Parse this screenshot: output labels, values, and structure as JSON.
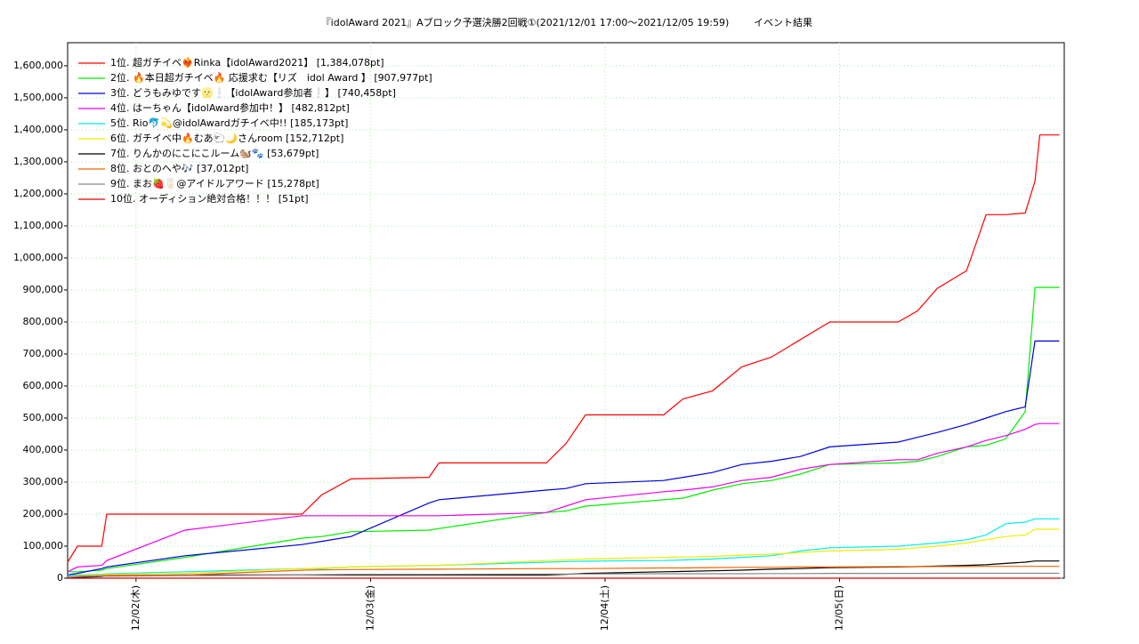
{
  "chart_data": {
    "type": "line",
    "title": "『idolAward 2021』Aブロック予選決勝2回戦①(2021/12/01 17:00～2021/12/05 19:59)",
    "subtitle": "イベント結果",
    "x": [
      0,
      1,
      3.5,
      4,
      12,
      24,
      26,
      29,
      37,
      38,
      49,
      51,
      53,
      61,
      63,
      66,
      69,
      72,
      75,
      78,
      85,
      87,
      89,
      92,
      94,
      96,
      98,
      99,
      99.5,
      101.5
    ],
    "xlim": [
      0,
      102
    ],
    "xticks": [
      {
        "value": 7,
        "label": "12/02(木)"
      },
      {
        "value": 31,
        "label": "12/03(金)"
      },
      {
        "value": 55,
        "label": "12/04(土)"
      },
      {
        "value": 79,
        "label": "12/05(日)"
      }
    ],
    "ylim": [
      0,
      1672000
    ],
    "yticks": [
      0,
      {
        "value": 100000,
        "label": "100,000"
      },
      {
        "value": 200000,
        "label": "200,000"
      },
      {
        "value": 300000,
        "label": "300,000"
      },
      {
        "value": 400000,
        "label": "400,000"
      },
      {
        "value": 500000,
        "label": "500,000"
      },
      {
        "value": 600000,
        "label": "600,000"
      },
      {
        "value": 700000,
        "label": "700,000"
      },
      {
        "value": 800000,
        "label": "800,000"
      },
      {
        "value": 900000,
        "label": "900,000"
      },
      {
        "value": 1000000,
        "label": "1,000,000"
      },
      {
        "value": 1100000,
        "label": "1,100,000"
      },
      {
        "value": 1200000,
        "label": "1,200,000"
      },
      {
        "value": 1300000,
        "label": "1,300,000"
      },
      {
        "value": 1400000,
        "label": "1,400,000"
      },
      {
        "value": 1500000,
        "label": "1,500,000"
      },
      {
        "value": 1600000,
        "label": "1,600,000"
      }
    ],
    "grid": true,
    "legend": "upper-left",
    "series": [
      {
        "name": "1位. 超ガチイベ❤️‍🔥Rinka【idolAward2021】 [1,384,078pt]",
        "color": "#ff0000",
        "values": [
          50000,
          100000,
          100000,
          200000,
          200000,
          200000,
          260000,
          310000,
          315000,
          360000,
          360000,
          420000,
          510000,
          510000,
          560000,
          585000,
          660000,
          690000,
          745000,
          800000,
          800000,
          835000,
          905000,
          960000,
          1135000,
          1135000,
          1140000,
          1240000,
          1384078,
          1384078
        ]
      },
      {
        "name": "2位. 🔥本日超ガチイベ🔥 応援求む【リズ　idol Award 】 [907,977pt]",
        "color": "#00ee00",
        "values": [
          20000,
          20000,
          25000,
          30000,
          65000,
          125000,
          130000,
          145000,
          150000,
          155000,
          205000,
          210000,
          225000,
          245000,
          250000,
          275000,
          295000,
          305000,
          325000,
          355000,
          360000,
          365000,
          380000,
          410000,
          415000,
          435000,
          520000,
          907977,
          907977,
          907977
        ]
      },
      {
        "name": "3位. どうもみゆです🌝❕【idolAward参加者❕】 [740,458pt]",
        "color": "#0000dd",
        "values": [
          10000,
          15000,
          30000,
          35000,
          70000,
          105000,
          115000,
          130000,
          235000,
          245000,
          275000,
          280000,
          295000,
          305000,
          315000,
          330000,
          355000,
          365000,
          380000,
          410000,
          425000,
          440000,
          455000,
          480000,
          500000,
          520000,
          535000,
          740458,
          740458,
          740458
        ]
      },
      {
        "name": "4位. はーちゃん【idolAward参加中！】 [482,812pt]",
        "color": "#ee00ee",
        "values": [
          20000,
          35000,
          40000,
          55000,
          150000,
          195000,
          195000,
          195000,
          195000,
          195000,
          205000,
          225000,
          245000,
          270000,
          275000,
          285000,
          305000,
          315000,
          340000,
          355000,
          370000,
          370000,
          390000,
          410000,
          430000,
          445000,
          465000,
          480000,
          482812,
          482812
        ]
      },
      {
        "name": "5位. Rio🐬💫@idolAwardガチイベ中!! [185,173pt]",
        "color": "#00eeee",
        "values": [
          8000,
          10000,
          12000,
          14000,
          20000,
          30000,
          30000,
          35000,
          40000,
          40000,
          50000,
          52000,
          53000,
          55000,
          57000,
          60000,
          65000,
          70000,
          85000,
          95000,
          100000,
          105000,
          110000,
          120000,
          135000,
          170000,
          175000,
          185173,
          185173,
          185173
        ]
      },
      {
        "name": "6位. ガチイベ中🔥むあ🐑🌙さんroom [152,712pt]",
        "color": "#eeee00",
        "values": [
          5000,
          8000,
          10000,
          12000,
          15000,
          30000,
          32000,
          35000,
          40000,
          40000,
          55000,
          57000,
          60000,
          65000,
          66000,
          68000,
          72000,
          75000,
          80000,
          85000,
          90000,
          95000,
          100000,
          110000,
          120000,
          130000,
          135000,
          152712,
          152712,
          152712
        ]
      },
      {
        "name": "7位. りんかのにこにこルーム🐿️🐾 [53,679pt]",
        "color": "#000000",
        "values": [
          0,
          2000,
          5000,
          8000,
          10000,
          10000,
          10000,
          10000,
          10000,
          10000,
          10000,
          12000,
          15000,
          20000,
          21000,
          23000,
          25000,
          28000,
          30000,
          33000,
          35000,
          36000,
          38000,
          40000,
          42000,
          46000,
          50000,
          53679,
          53679,
          53679
        ]
      },
      {
        "name": "8位. おとのへや🎶 [37,012pt]",
        "color": "#ee6600",
        "values": [
          5000,
          6000,
          8000,
          9000,
          10000,
          25000,
          26000,
          27000,
          28000,
          28000,
          30000,
          30000,
          30000,
          32000,
          32000,
          33000,
          34000,
          34000,
          35000,
          35000,
          36000,
          36000,
          36500,
          36500,
          37000,
          37000,
          37000,
          37012,
          37012,
          37012
        ]
      },
      {
        "name": "9位. まお🍓🥛@アイドルアワード [15,278pt]",
        "color": "#888888",
        "values": [
          5000,
          5000,
          6000,
          6000,
          8000,
          10000,
          11000,
          12000,
          12000,
          12000,
          13000,
          13000,
          13000,
          14000,
          14000,
          14000,
          14000,
          14500,
          14500,
          15000,
          15000,
          15000,
          15200,
          15200,
          15278,
          15278,
          15278,
          15278,
          15278,
          15278
        ]
      },
      {
        "name": "10位. オーディション絶対合格！！！ [51pt]",
        "color": "#dd0000",
        "values": [
          0,
          0,
          0,
          0,
          0,
          0,
          0,
          0,
          0,
          0,
          0,
          0,
          0,
          0,
          0,
          0,
          0,
          0,
          0,
          0,
          0,
          0,
          0,
          0,
          51,
          51,
          51,
          51,
          51,
          51
        ]
      }
    ]
  }
}
